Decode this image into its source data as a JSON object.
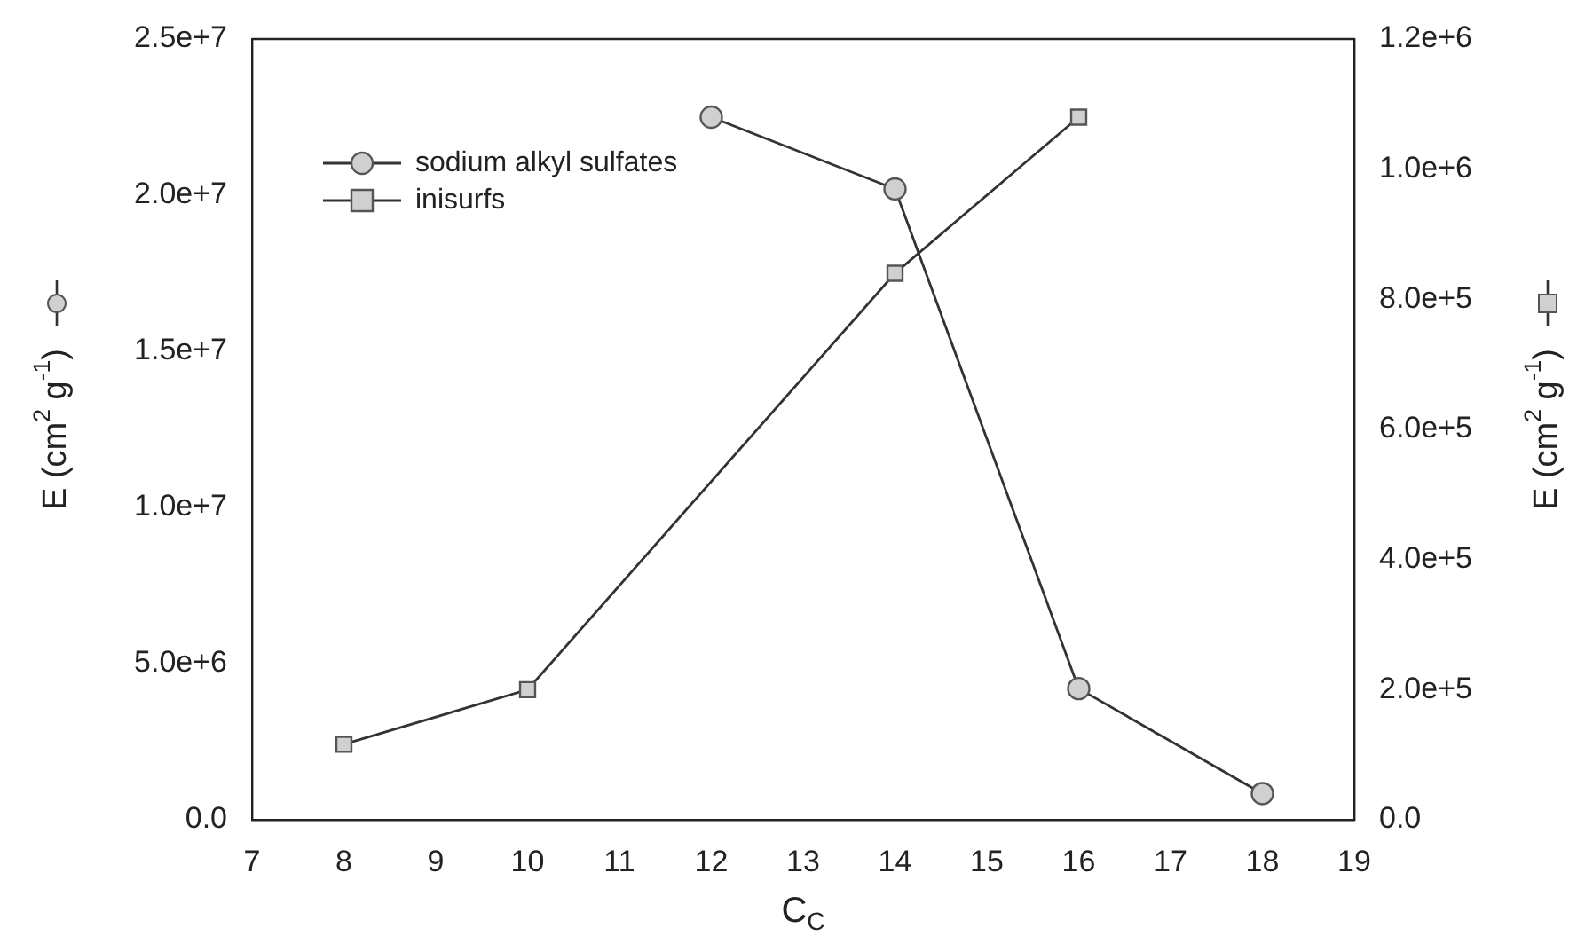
{
  "chart_data": {
    "type": "line",
    "xlabel": "C$_{C}$",
    "ylabel": "E (cm$^{2}$ g$^{-1}$)",
    "y2label": "E (cm$^{2}$ g$^{-1}$)",
    "xlim": [
      7,
      19
    ],
    "xticks": [
      7,
      8,
      9,
      10,
      11,
      12,
      13,
      14,
      15,
      16,
      17,
      18,
      19
    ],
    "ylim": [
      0,
      25000000
    ],
    "yticks": [
      {
        "value": 0,
        "label": "0.0"
      },
      {
        "value": 5000000,
        "label": "5.0e+6"
      },
      {
        "value": 10000000,
        "label": "1.0e+7"
      },
      {
        "value": 15000000,
        "label": "1.5e+7"
      },
      {
        "value": 20000000,
        "label": "2.0e+7"
      },
      {
        "value": 25000000,
        "label": "2.5e+7"
      }
    ],
    "y2lim": [
      0,
      1200000
    ],
    "y2ticks": [
      {
        "value": 0,
        "label": "0.0"
      },
      {
        "value": 200000,
        "label": "2.0e+5"
      },
      {
        "value": 400000,
        "label": "4.0e+5"
      },
      {
        "value": 600000,
        "label": "6.0e+5"
      },
      {
        "value": 800000,
        "label": "8.0e+5"
      },
      {
        "value": 1000000,
        "label": "1.0e+6"
      },
      {
        "value": 1200000,
        "label": "1.2e+6"
      }
    ],
    "series": [
      {
        "name": "sodium alkyl sulfates",
        "color": "#333333",
        "marker": "circle",
        "x": [
          12,
          14,
          16,
          18
        ],
        "values": [
          22500000,
          20200000,
          4200000,
          840000
        ]
      },
      {
        "name": "inisurfs",
        "color": "#333333",
        "marker": "square",
        "axis": "y2",
        "x": [
          8,
          10,
          14,
          16
        ],
        "values": [
          116000,
          200000,
          840000,
          1080000
        ]
      }
    ],
    "legend": "top left",
    "grid": false
  }
}
